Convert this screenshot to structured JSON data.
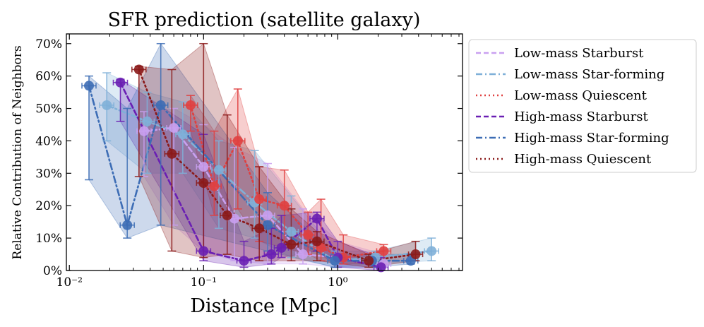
{
  "chart_data": {
    "type": "line",
    "title": "SFR prediction (satellite galaxy)",
    "xlabel": "Distance [Mpc]",
    "ylabel": "Relative Contribution of Neighbors",
    "xscale": "log",
    "xlim": [
      0.0095,
      8.5
    ],
    "ylim": [
      0,
      0.73
    ],
    "x_ticks": [
      {
        "value": 0.01,
        "label": "10⁻²"
      },
      {
        "value": 0.1,
        "label": "10⁻¹"
      },
      {
        "value": 1,
        "label": "10⁰"
      }
    ],
    "y_ticks": [
      {
        "value": 0,
        "label": "0%"
      },
      {
        "value": 0.1,
        "label": "10%"
      },
      {
        "value": 0.2,
        "label": "20%"
      },
      {
        "value": 0.3,
        "label": "30%"
      },
      {
        "value": 0.4,
        "label": "40%"
      },
      {
        "value": 0.5,
        "label": "50%"
      },
      {
        "value": 0.6,
        "label": "60%"
      },
      {
        "value": 0.7,
        "label": "70%"
      }
    ],
    "legend_position": "outside-right",
    "series": [
      {
        "name": "Low-mass Starburst",
        "color": "#c9a0f0",
        "dash": "dashed",
        "points": [
          {
            "x": 0.036,
            "y": 0.43,
            "lo": 0.29,
            "hi": 0.49
          },
          {
            "x": 0.06,
            "y": 0.44,
            "lo": 0.14,
            "hi": 0.5
          },
          {
            "x": 0.1,
            "y": 0.32,
            "lo": 0.06,
            "hi": 0.45
          },
          {
            "x": 0.17,
            "y": 0.16,
            "lo": 0.03,
            "hi": 0.38
          },
          {
            "x": 0.3,
            "y": 0.17,
            "lo": 0.02,
            "hi": 0.33
          },
          {
            "x": 0.55,
            "y": 0.05,
            "lo": 0.02,
            "hi": 0.19
          },
          {
            "x": 1.0,
            "y": 0.04,
            "lo": 0.01,
            "hi": 0.09
          },
          {
            "x": 2.2,
            "y": 0.02,
            "lo": 0.01,
            "hi": 0.05
          }
        ]
      },
      {
        "name": "Low-mass Star-forming",
        "color": "#7fb0d8",
        "dash": "dashdot",
        "points": [
          {
            "x": 0.019,
            "y": 0.51,
            "lo": 0.4,
            "hi": 0.61
          },
          {
            "x": 0.038,
            "y": 0.46,
            "lo": 0.3,
            "hi": 0.55
          },
          {
            "x": 0.07,
            "y": 0.42,
            "lo": 0.3,
            "hi": 0.52
          },
          {
            "x": 0.13,
            "y": 0.31,
            "lo": 0.13,
            "hi": 0.4
          },
          {
            "x": 0.24,
            "y": 0.21,
            "lo": 0.1,
            "hi": 0.37
          },
          {
            "x": 0.45,
            "y": 0.12,
            "lo": 0.04,
            "hi": 0.23
          },
          {
            "x": 0.95,
            "y": 0.03,
            "lo": 0.01,
            "hi": 0.06
          },
          {
            "x": 1.9,
            "y": 0.04,
            "lo": 0.02,
            "hi": 0.06
          },
          {
            "x": 5.0,
            "y": 0.06,
            "lo": 0.03,
            "hi": 0.1
          }
        ]
      },
      {
        "name": "Low-mass Quiescent",
        "color": "#e04040",
        "dash": "dotted",
        "points": [
          {
            "x": 0.08,
            "y": 0.51,
            "lo": 0.43,
            "hi": 0.54
          },
          {
            "x": 0.12,
            "y": 0.26,
            "lo": 0.17,
            "hi": 0.43
          },
          {
            "x": 0.18,
            "y": 0.4,
            "lo": 0.19,
            "hi": 0.56
          },
          {
            "x": 0.26,
            "y": 0.22,
            "lo": 0.09,
            "hi": 0.32
          },
          {
            "x": 0.4,
            "y": 0.2,
            "lo": 0.07,
            "hi": 0.31
          },
          {
            "x": 0.6,
            "y": 0.11,
            "lo": 0.05,
            "hi": 0.18
          },
          {
            "x": 0.75,
            "y": 0.07,
            "lo": 0.03,
            "hi": 0.22
          },
          {
            "x": 1.1,
            "y": 0.04,
            "lo": 0.02,
            "hi": 0.11
          },
          {
            "x": 2.2,
            "y": 0.06,
            "lo": 0.02,
            "hi": 0.08
          }
        ]
      },
      {
        "name": "High-mass Starburst",
        "color": "#6a1fb3",
        "dash": "dashed",
        "points": [
          {
            "x": 0.024,
            "y": 0.58,
            "lo": 0.46,
            "hi": 0.59
          },
          {
            "x": 0.1,
            "y": 0.06,
            "lo": 0.03,
            "hi": 0.42
          },
          {
            "x": 0.2,
            "y": 0.03,
            "lo": 0.01,
            "hi": 0.09
          },
          {
            "x": 0.32,
            "y": 0.05,
            "lo": 0.02,
            "hi": 0.13
          },
          {
            "x": 0.38,
            "y": 0.07,
            "lo": 0.04,
            "hi": 0.17
          },
          {
            "x": 0.7,
            "y": 0.16,
            "lo": 0.06,
            "hi": 0.18
          },
          {
            "x": 1.0,
            "y": 0.04,
            "lo": 0.01,
            "hi": 0.09
          },
          {
            "x": 2.1,
            "y": 0.01,
            "lo": 0.0,
            "hi": 0.04
          }
        ]
      },
      {
        "name": "High-mass Star-forming",
        "color": "#3d6db5",
        "dash": "dashdot",
        "points": [
          {
            "x": 0.014,
            "y": 0.57,
            "lo": 0.28,
            "hi": 0.6
          },
          {
            "x": 0.027,
            "y": 0.14,
            "lo": 0.1,
            "hi": 0.5
          },
          {
            "x": 0.048,
            "y": 0.51,
            "lo": 0.14,
            "hi": 0.7
          },
          {
            "x": 0.3,
            "y": 0.14,
            "lo": 0.06,
            "hi": 0.24
          },
          {
            "x": 0.95,
            "y": 0.03,
            "lo": 0.01,
            "hi": 0.05
          },
          {
            "x": 1.8,
            "y": 0.03,
            "lo": 0.01,
            "hi": 0.05
          },
          {
            "x": 3.5,
            "y": 0.03,
            "lo": 0.02,
            "hi": 0.05
          }
        ]
      },
      {
        "name": "High-mass Quiescent",
        "color": "#8b1a1a",
        "dash": "dotted",
        "points": [
          {
            "x": 0.033,
            "y": 0.62,
            "lo": 0.29,
            "hi": 0.63
          },
          {
            "x": 0.058,
            "y": 0.36,
            "lo": 0.06,
            "hi": 0.62
          },
          {
            "x": 0.1,
            "y": 0.27,
            "lo": 0.04,
            "hi": 0.7
          },
          {
            "x": 0.15,
            "y": 0.17,
            "lo": 0.05,
            "hi": 0.48
          },
          {
            "x": 0.26,
            "y": 0.13,
            "lo": 0.03,
            "hi": 0.32
          },
          {
            "x": 0.45,
            "y": 0.08,
            "lo": 0.03,
            "hi": 0.19
          },
          {
            "x": 0.7,
            "y": 0.09,
            "lo": 0.03,
            "hi": 0.12
          },
          {
            "x": 1.7,
            "y": 0.03,
            "lo": 0.01,
            "hi": 0.05
          },
          {
            "x": 3.8,
            "y": 0.05,
            "lo": 0.03,
            "hi": 0.09
          }
        ]
      }
    ]
  }
}
